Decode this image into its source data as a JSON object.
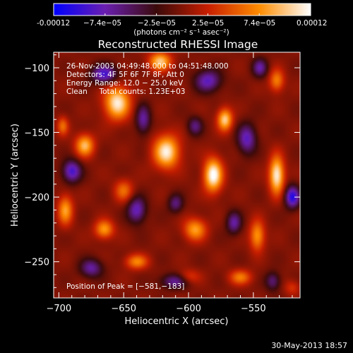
{
  "colorbar": {
    "tick_labels": [
      "-0.00012",
      "−7.4e−05",
      "−2.5e−05",
      "2.5e−05",
      "7.4e−05",
      "0.00012"
    ],
    "units": "(photons cm⁻² s⁻¹ asec⁻²)",
    "range": [
      -0.00012,
      0.00012
    ],
    "colormap": [
      "#0000ff",
      "#6a1fb0",
      "#3a0a0a",
      "#c81e00",
      "#ff8c00",
      "#ffffff"
    ]
  },
  "chart_data": {
    "type": "heatmap",
    "title": "Reconstructed RHESSI Image",
    "xlabel": "Heliocentric X (arcsec)",
    "ylabel": "Heliocentric Y (arcsec)",
    "xlim": [
      -704,
      -514
    ],
    "ylim": [
      -278,
      -88
    ],
    "x_ticks": [
      -700,
      -650,
      -600,
      -550
    ],
    "y_ticks": [
      -100,
      -150,
      -200,
      -250
    ],
    "x_tick_labels": [
      "−700",
      "−650",
      "−600",
      "−550"
    ],
    "y_tick_labels": [
      "−100",
      "−150",
      "−200",
      "−250"
    ],
    "annotations": [
      "26-Nov-2003 04:49:48.000 to 04:51:48.000",
      "Detectors: 4F 5F 6F 7F 8F, Att 0",
      "Energy Range: 12.0 − 25.0 keV",
      "Clean     Total counts: 1.23E+03"
    ],
    "peak_label": "Position of Peak = [−581,−183]",
    "peak": [
      -581,
      -183
    ],
    "sources": [
      {
        "x": -655,
        "y": -127,
        "amp": 1.0,
        "sx": 7,
        "sy": 9
      },
      {
        "x": -622,
        "y": -95,
        "amp": 0.85,
        "sx": 6,
        "sy": 5
      },
      {
        "x": -617,
        "y": -165,
        "amp": 1.0,
        "sx": 7,
        "sy": 9
      },
      {
        "x": -572,
        "y": -140,
        "amp": 0.9,
        "sx": 4,
        "sy": 6
      },
      {
        "x": -581,
        "y": -183,
        "amp": 1.1,
        "sx": 5,
        "sy": 9
      },
      {
        "x": -532,
        "y": -183,
        "amp": 1.05,
        "sx": 4,
        "sy": 10
      },
      {
        "x": -532,
        "y": -110,
        "amp": 0.6,
        "sx": 4,
        "sy": 6
      },
      {
        "x": -547,
        "y": -230,
        "amp": 0.7,
        "sx": 4,
        "sy": 8
      },
      {
        "x": -680,
        "y": -160,
        "amp": 0.8,
        "sx": 5,
        "sy": 6
      },
      {
        "x": -695,
        "y": -210,
        "amp": 0.7,
        "sx": 4,
        "sy": 8
      },
      {
        "x": -650,
        "y": -195,
        "amp": 0.5,
        "sx": 5,
        "sy": 6
      },
      {
        "x": -665,
        "y": -225,
        "amp": 0.7,
        "sx": 5,
        "sy": 5
      },
      {
        "x": -640,
        "y": -250,
        "amp": 0.6,
        "sx": 6,
        "sy": 4
      },
      {
        "x": -595,
        "y": -225,
        "amp": 0.7,
        "sx": 6,
        "sy": 6
      },
      {
        "x": -560,
        "y": -262,
        "amp": 0.55,
        "sx": 6,
        "sy": 4
      },
      {
        "x": -600,
        "y": -262,
        "amp": 0.4,
        "sx": 6,
        "sy": 4
      },
      {
        "x": -520,
        "y": -270,
        "amp": 0.3,
        "sx": 4,
        "sy": 4
      },
      {
        "x": -697,
        "y": -145,
        "amp": 0.5,
        "sx": 3,
        "sy": 5
      },
      {
        "x": -665,
        "y": -105,
        "amp": -0.8,
        "sx": 7,
        "sy": 5
      },
      {
        "x": -585,
        "y": -110,
        "amp": -0.7,
        "sx": 7,
        "sy": 6
      },
      {
        "x": -555,
        "y": -155,
        "amp": -0.7,
        "sx": 5,
        "sy": 8
      },
      {
        "x": -635,
        "y": -140,
        "amp": -0.6,
        "sx": 4,
        "sy": 8
      },
      {
        "x": -520,
        "y": -200,
        "amp": -0.9,
        "sx": 4,
        "sy": 6
      },
      {
        "x": -690,
        "y": -180,
        "amp": -0.8,
        "sx": 5,
        "sy": 6
      },
      {
        "x": -640,
        "y": -210,
        "amp": -0.7,
        "sx": 5,
        "sy": 7
      },
      {
        "x": -610,
        "y": -205,
        "amp": -0.5,
        "sx": 4,
        "sy": 5
      },
      {
        "x": -610,
        "y": -265,
        "amp": -0.6,
        "sx": 8,
        "sy": 4
      },
      {
        "x": -565,
        "y": -220,
        "amp": -0.6,
        "sx": 4,
        "sy": 6
      },
      {
        "x": -535,
        "y": -265,
        "amp": -0.5,
        "sx": 4,
        "sy": 5
      },
      {
        "x": -675,
        "y": -255,
        "amp": -0.6,
        "sx": 6,
        "sy": 5
      },
      {
        "x": -595,
        "y": -145,
        "amp": -0.5,
        "sx": 4,
        "sy": 5
      },
      {
        "x": -545,
        "y": -100,
        "amp": -0.6,
        "sx": 4,
        "sy": 5
      }
    ]
  },
  "footer": {
    "date": "30-May-2013 18:57"
  }
}
